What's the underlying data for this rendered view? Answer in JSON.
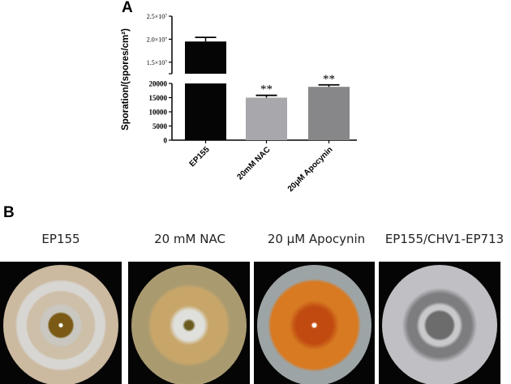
{
  "panel_a_label": "A",
  "panel_b_label": "B",
  "chart_data": {
    "type": "bar",
    "title": "",
    "xlabel": "",
    "ylabel": "Sporation/(spores/cm²)",
    "y_axis_broken": true,
    "ylim_lower": [
      0,
      20000
    ],
    "ylim_upper": [
      12500000,
      25000000
    ],
    "yticks_lower": [
      "0",
      "5000",
      "10000",
      "15000",
      "20000"
    ],
    "yticks_upper": [
      "1.5×10⁷",
      "2.0×10⁷",
      "2.5×10⁷"
    ],
    "categories": [
      "EP155",
      "20mM NAC",
      "20μM Apocynin"
    ],
    "values": [
      19500000,
      15000,
      18800
    ],
    "error_upper": [
      20400000,
      15800,
      19500
    ],
    "annotations": [
      "",
      "**",
      "**"
    ],
    "colors": [
      "#050505",
      "#a8a8ac",
      "#87878a"
    ]
  },
  "photos": {
    "titles": [
      "EP155",
      "20 mM NAC",
      "20 µM Apocynin",
      "EP155/CHV1-EP713"
    ]
  }
}
